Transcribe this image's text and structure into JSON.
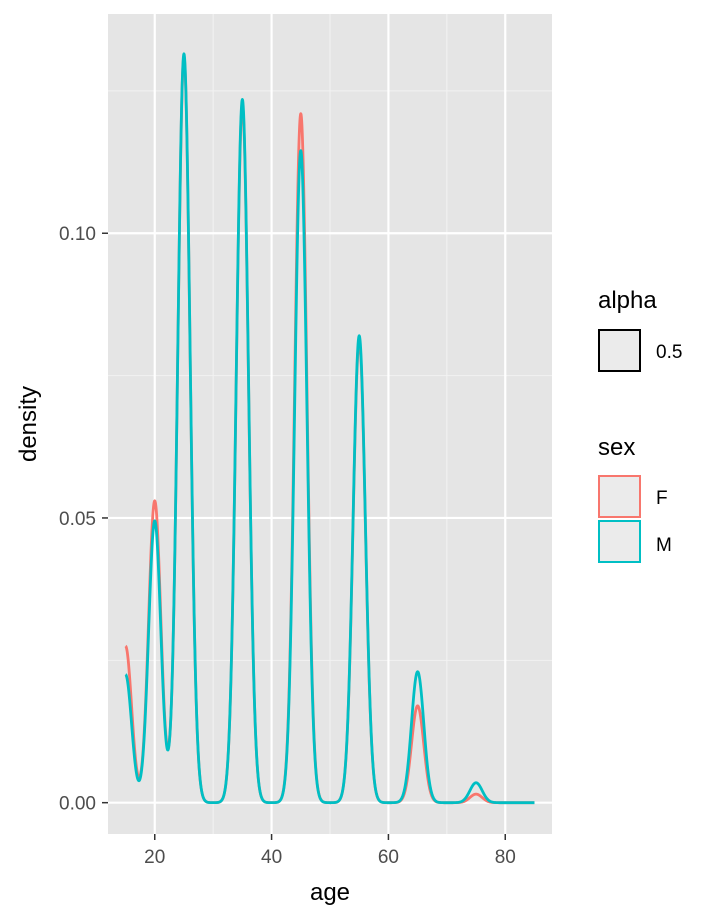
{
  "chart_data": {
    "type": "line",
    "subtype": "density",
    "xlabel": "age",
    "ylabel": "density",
    "xlim": [
      12,
      88
    ],
    "ylim": [
      -0.0055,
      0.1385
    ],
    "x_ticks": [
      20,
      40,
      60,
      80
    ],
    "x_tick_labels": [
      "20",
      "40",
      "60",
      "80"
    ],
    "y_ticks": [
      0.0,
      0.05,
      0.1
    ],
    "y_tick_labels": [
      "0.00",
      "0.05",
      "0.10"
    ],
    "grid": true,
    "background": "#e5e5e5",
    "legend_position": "right",
    "legends": [
      {
        "title": "alpha",
        "entries": [
          {
            "label": "0.5",
            "color": "#000000"
          }
        ]
      },
      {
        "title": "sex",
        "entries": [
          {
            "label": "F",
            "color": "#F8766D"
          },
          {
            "label": "M",
            "color": "#00BFC4"
          }
        ]
      }
    ],
    "series": [
      {
        "name": "F",
        "color": "#F8766D",
        "x_range": [
          15,
          85
        ],
        "peaks": [
          {
            "age": 15,
            "density": 0.0275
          },
          {
            "age": 20,
            "density": 0.053
          },
          {
            "age": 25,
            "density": 0.131
          },
          {
            "age": 35,
            "density": 0.1225
          },
          {
            "age": 45,
            "density": 0.121
          },
          {
            "age": 55,
            "density": 0.081
          },
          {
            "age": 65,
            "density": 0.017
          },
          {
            "age": 75,
            "density": 0.0015
          }
        ]
      },
      {
        "name": "M",
        "color": "#00BFC4",
        "x_range": [
          15,
          85
        ],
        "peaks": [
          {
            "age": 15,
            "density": 0.0225
          },
          {
            "age": 20,
            "density": 0.0495
          },
          {
            "age": 25,
            "density": 0.1315
          },
          {
            "age": 35,
            "density": 0.1235
          },
          {
            "age": 45,
            "density": 0.1145
          },
          {
            "age": 55,
            "density": 0.082
          },
          {
            "age": 65,
            "density": 0.023
          },
          {
            "age": 75,
            "density": 0.0035
          }
        ]
      }
    ]
  }
}
